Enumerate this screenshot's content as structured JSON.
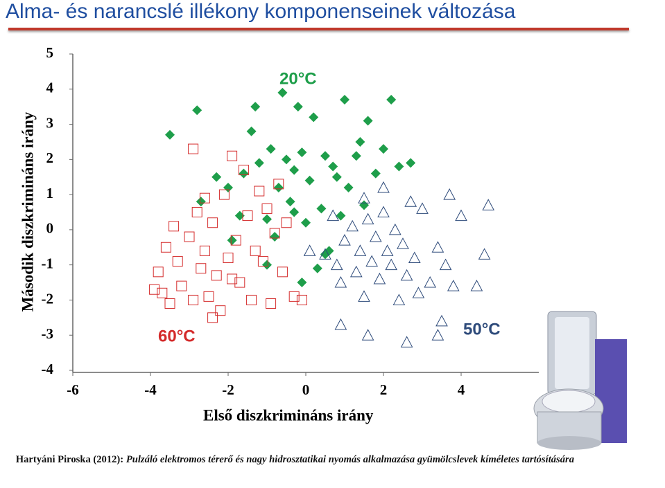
{
  "header": {
    "title": "Alma- és narancslé illékony komponenseinek változása"
  },
  "chart_data": {
    "type": "scatter",
    "x_label": "Első diszkrimináns irány",
    "y_label": "Második diszkrimináns irány",
    "xlim": [
      -6,
      6
    ],
    "ylim": [
      -4,
      5
    ],
    "xticks": [
      -6,
      -4,
      -2,
      0,
      2,
      4
    ],
    "yticks": [
      -4,
      -3,
      -2,
      -1,
      0,
      1,
      2,
      3,
      4,
      5
    ],
    "series": [
      {
        "name": "20°C",
        "color": "#1e9e4a",
        "marker": "diamond",
        "x": [
          -3.5,
          -2.8,
          -2.7,
          -2.3,
          -2,
          -1.9,
          -1.7,
          -1.6,
          -1.4,
          -1.3,
          -1.2,
          -1,
          -0.9,
          -0.8,
          -0.7,
          -0.6,
          -0.5,
          -0.4,
          -0.3,
          -0.2,
          -0.1,
          0,
          0.1,
          0.2,
          0.3,
          0.4,
          0.5,
          0.6,
          0.7,
          0.9,
          1,
          1.1,
          1.3,
          1.5,
          1.6,
          1.8,
          2,
          2.2,
          2.4,
          2.7,
          -0.1,
          0.5,
          -1,
          1.4,
          0.8,
          -0.3
        ],
        "values": [
          2.7,
          3.4,
          0.8,
          1.5,
          1.2,
          -0.3,
          0.4,
          1.6,
          2.8,
          3.5,
          1.9,
          0.3,
          2.3,
          -0.2,
          1.2,
          3.9,
          2,
          0.8,
          1.7,
          3.5,
          2.2,
          0.2,
          1.4,
          3.2,
          -1.1,
          0.6,
          2.1,
          -0.6,
          1.8,
          0.4,
          3.7,
          1.2,
          2.1,
          0.7,
          3.1,
          1.6,
          2.3,
          3.7,
          1.8,
          1.9,
          -1.5,
          -0.7,
          -1,
          2.5,
          1.5,
          0.5
        ]
      },
      {
        "name": "60°C",
        "color": "#d42a2a",
        "marker": "square",
        "x": [
          -3.9,
          -3.8,
          -3.6,
          -3.5,
          -3.4,
          -3.3,
          -3.2,
          -3,
          -2.9,
          -2.8,
          -2.7,
          -2.6,
          -2.5,
          -2.4,
          -2.3,
          -2.2,
          -2.1,
          -2,
          -1.9,
          -1.8,
          -1.7,
          -1.6,
          -1.5,
          -1.4,
          -1.3,
          -1.2,
          -1.1,
          -1,
          -0.9,
          -0.8,
          -0.7,
          -0.6,
          -0.5,
          -0.3,
          -0.1,
          -2.4,
          -2.9,
          -3.7,
          -1.9,
          -2.6
        ],
        "values": [
          -1.7,
          -1.2,
          -0.5,
          -2.1,
          0.1,
          -0.9,
          -1.6,
          -0.2,
          -2,
          0.5,
          -1.1,
          -0.6,
          -1.9,
          0.2,
          -1.3,
          -2.3,
          1,
          -0.8,
          2.1,
          -0.3,
          -1.5,
          1.7,
          0.4,
          -2,
          -0.6,
          1.1,
          -0.9,
          0.6,
          -2.1,
          -0.1,
          1.3,
          -1.2,
          0.2,
          -1.9,
          -2,
          -2.5,
          2.3,
          -1.8,
          -1.4,
          0.9
        ]
      },
      {
        "name": "50°C",
        "color": "#2d4a7a",
        "marker": "triangle",
        "x": [
          0.1,
          0.5,
          0.7,
          0.8,
          0.9,
          1,
          1.2,
          1.3,
          1.4,
          1.5,
          1.6,
          1.7,
          1.8,
          1.9,
          2,
          2.1,
          2.2,
          2.3,
          2.4,
          2.5,
          2.6,
          2.7,
          2.8,
          2.9,
          3,
          3.2,
          3.4,
          3.5,
          3.6,
          3.7,
          3.8,
          4,
          4.4,
          4.6,
          4.7,
          0.9,
          1.6,
          2.6,
          3.4,
          1.5,
          2
        ],
        "values": [
          -0.6,
          -0.7,
          0.4,
          -1,
          -1.5,
          -0.3,
          0.1,
          -1.2,
          -0.6,
          -1.9,
          0.3,
          -0.9,
          -0.2,
          -1.4,
          0.5,
          -0.6,
          -1,
          0,
          -2,
          -0.4,
          -1.3,
          0.8,
          -0.8,
          -1.8,
          0.6,
          -1.5,
          -0.5,
          -2.6,
          -1,
          1,
          -1.6,
          0.4,
          -1.6,
          -0.7,
          0.7,
          -2.7,
          -3,
          -3.2,
          -3,
          0.9,
          1.2
        ]
      }
    ]
  },
  "citation": {
    "author": "Hartyáni Piroska (2012):",
    "text": "Pulzáló elektromos térerő és nagy hidrosztatikai nyomás alkalmazása gyümölcslevek kíméletes tartósítására"
  }
}
